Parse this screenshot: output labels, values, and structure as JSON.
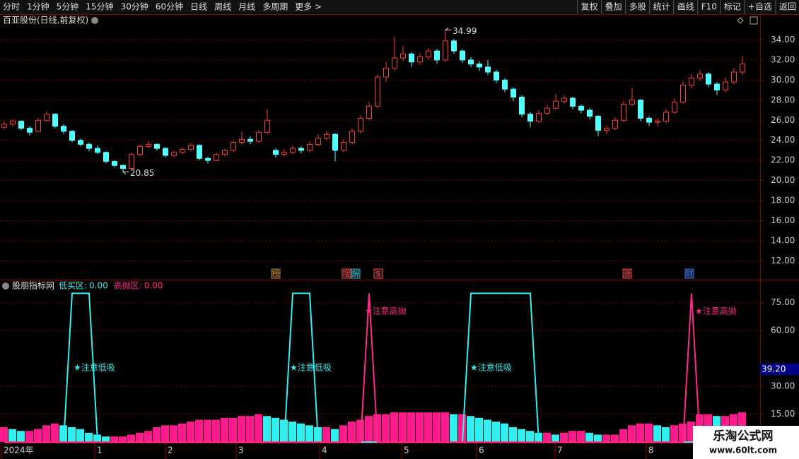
{
  "toolbar": {
    "left": [
      "分时",
      "1分钟",
      "5分钟",
      "15分钟",
      "30分钟",
      "60分钟",
      "日线",
      "周线",
      "月线",
      "多周期",
      "更多 >"
    ],
    "active": 6,
    "right": [
      "复权",
      "叠加",
      "多股",
      "统计",
      "画线",
      "F10",
      "标记",
      "+自选",
      "返回"
    ]
  },
  "watermark": {
    "title": "乐淘公式网",
    "url": "www.60lt.com"
  },
  "x_labels": [
    "2024年",
    "1",
    "2",
    "3",
    "4",
    "5",
    "6",
    "7",
    "8"
  ],
  "chart_data": [
    {
      "type": "candlestick",
      "title": "百亚股份(日线,前复权)",
      "up_color": "#ff3c3c",
      "down_color": "#54ffff",
      "ylim": [
        10.2,
        35.3
      ],
      "yticks": [
        {
          "value": 12,
          "label": "12.00"
        },
        {
          "value": 14,
          "label": "14.00"
        },
        {
          "value": 16,
          "label": "16.00"
        },
        {
          "value": 18,
          "label": "18.00"
        },
        {
          "value": 20,
          "label": "20.00"
        },
        {
          "value": 22,
          "label": "22.00"
        },
        {
          "value": 24,
          "label": "24.00"
        },
        {
          "value": 26,
          "label": "26.00"
        },
        {
          "value": 28,
          "label": "28.00"
        },
        {
          "value": 30,
          "label": "30.00"
        },
        {
          "value": 32,
          "label": "32.00"
        },
        {
          "value": 34,
          "label": "34.00"
        }
      ],
      "grid": true,
      "annotations": [
        {
          "index": 52,
          "value": 34.99,
          "label": "34.99"
        },
        {
          "index": 14,
          "value": 20.85,
          "label": "20.85"
        }
      ],
      "events": [
        "榜",
        "增",
        "解",
        "$",
        "涨",
        "财"
      ],
      "ohlc": [
        [
          25.3,
          25.9,
          25.1,
          25.6
        ],
        [
          25.6,
          26.1,
          25.4,
          25.9
        ],
        [
          25.9,
          26.0,
          25.0,
          25.2
        ],
        [
          25.2,
          25.4,
          24.5,
          24.8
        ],
        [
          24.9,
          26.2,
          24.8,
          26.0
        ],
        [
          26.0,
          26.9,
          25.8,
          26.6
        ],
        [
          26.6,
          26.7,
          25.2,
          25.4
        ],
        [
          25.4,
          25.6,
          24.6,
          24.9
        ],
        [
          24.9,
          25.0,
          23.8,
          24.0
        ],
        [
          24.0,
          24.2,
          23.4,
          23.6
        ],
        [
          23.6,
          23.8,
          22.9,
          23.2
        ],
        [
          23.2,
          23.5,
          22.6,
          22.8
        ],
        [
          22.8,
          22.9,
          21.7,
          21.9
        ],
        [
          21.9,
          22.0,
          21.3,
          21.5
        ],
        [
          21.5,
          21.6,
          20.85,
          21.2
        ],
        [
          21.2,
          22.8,
          21.1,
          22.6
        ],
        [
          22.6,
          23.6,
          22.4,
          23.4
        ],
        [
          23.4,
          23.9,
          23.2,
          23.6
        ],
        [
          23.6,
          23.7,
          23.0,
          23.2
        ],
        [
          23.2,
          23.3,
          22.3,
          22.5
        ],
        [
          22.5,
          23.0,
          22.3,
          22.8
        ],
        [
          22.8,
          23.3,
          22.6,
          23.1
        ],
        [
          23.1,
          23.7,
          22.9,
          23.5
        ],
        [
          23.5,
          23.6,
          22.0,
          22.2
        ],
        [
          22.2,
          22.4,
          21.7,
          22.0
        ],
        [
          22.0,
          22.8,
          21.9,
          22.6
        ],
        [
          22.6,
          23.2,
          22.4,
          23.0
        ],
        [
          23.0,
          24.0,
          22.8,
          23.8
        ],
        [
          23.8,
          24.9,
          23.6,
          24.1
        ],
        [
          24.1,
          24.4,
          23.6,
          23.9
        ],
        [
          23.9,
          25.0,
          23.8,
          24.8
        ],
        [
          24.8,
          27.1,
          24.6,
          26.0
        ],
        [
          23.0,
          23.2,
          22.3,
          22.6
        ],
        [
          22.6,
          23.1,
          22.4,
          22.8
        ],
        [
          22.8,
          23.5,
          22.6,
          23.2
        ],
        [
          23.2,
          23.4,
          22.7,
          23.0
        ],
        [
          23.0,
          23.9,
          22.8,
          23.6
        ],
        [
          23.6,
          24.6,
          23.4,
          24.2
        ],
        [
          24.2,
          24.9,
          24.0,
          24.6
        ],
        [
          24.6,
          24.7,
          21.9,
          23.0
        ],
        [
          23.0,
          24.1,
          22.8,
          23.8
        ],
        [
          23.8,
          25.2,
          23.6,
          24.9
        ],
        [
          24.9,
          26.5,
          24.7,
          26.2
        ],
        [
          26.2,
          27.8,
          26.0,
          27.4
        ],
        [
          27.4,
          30.6,
          27.2,
          30.3
        ],
        [
          30.3,
          31.8,
          29.8,
          31.2
        ],
        [
          31.2,
          34.3,
          30.9,
          32.2
        ],
        [
          32.2,
          33.4,
          31.9,
          32.6
        ],
        [
          32.6,
          32.8,
          31.3,
          31.8
        ],
        [
          31.8,
          32.7,
          31.5,
          32.3
        ],
        [
          32.3,
          33.2,
          32.0,
          32.9
        ],
        [
          32.9,
          33.1,
          31.6,
          32.0
        ],
        [
          32.0,
          34.99,
          31.8,
          33.9
        ],
        [
          33.9,
          34.1,
          32.6,
          32.9
        ],
        [
          32.9,
          33.1,
          31.7,
          32.0
        ],
        [
          32.0,
          32.3,
          31.3,
          31.6
        ],
        [
          31.6,
          31.9,
          30.9,
          31.3
        ],
        [
          31.3,
          32.0,
          30.5,
          30.8
        ],
        [
          30.8,
          31.0,
          29.7,
          30.0
        ],
        [
          30.0,
          30.2,
          28.8,
          29.1
        ],
        [
          29.1,
          29.3,
          27.9,
          28.3
        ],
        [
          28.3,
          28.5,
          26.3,
          26.6
        ],
        [
          26.6,
          26.8,
          25.3,
          25.9
        ],
        [
          25.9,
          27.0,
          25.7,
          26.7
        ],
        [
          26.7,
          27.5,
          26.5,
          27.2
        ],
        [
          27.2,
          28.6,
          27.0,
          27.9
        ],
        [
          27.9,
          28.5,
          27.6,
          28.2
        ],
        [
          28.2,
          28.3,
          27.1,
          27.4
        ],
        [
          27.4,
          27.6,
          26.7,
          27.0
        ],
        [
          27.0,
          27.2,
          26.1,
          26.4
        ],
        [
          26.4,
          26.5,
          24.4,
          25.0
        ],
        [
          25.0,
          25.5,
          24.6,
          25.2
        ],
        [
          25.2,
          26.3,
          25.0,
          26.0
        ],
        [
          26.0,
          27.9,
          25.8,
          27.6
        ],
        [
          27.6,
          29.2,
          27.4,
          28.0
        ],
        [
          28.0,
          28.1,
          25.9,
          26.2
        ],
        [
          26.2,
          26.4,
          25.4,
          25.8
        ],
        [
          25.8,
          26.2,
          25.4,
          25.9
        ],
        [
          25.9,
          27.1,
          25.7,
          26.8
        ],
        [
          26.8,
          28.2,
          26.6,
          27.8
        ],
        [
          27.8,
          29.9,
          27.6,
          29.5
        ],
        [
          29.5,
          30.6,
          29.2,
          30.2
        ],
        [
          30.2,
          31.0,
          29.9,
          30.6
        ],
        [
          30.6,
          30.8,
          29.3,
          29.6
        ],
        [
          29.6,
          29.8,
          28.5,
          29.0
        ],
        [
          29.0,
          30.2,
          28.8,
          29.8
        ],
        [
          29.8,
          31.2,
          29.6,
          30.8
        ],
        [
          30.8,
          32.4,
          30.5,
          31.6
        ]
      ]
    },
    {
      "type": "indicator",
      "title": "股朋指标网",
      "ylim": [
        0,
        87
      ],
      "yticks": [
        {
          "value": 15,
          "label": "15.00"
        },
        {
          "value": 30,
          "label": "30.00"
        },
        {
          "value": 60,
          "label": "60.00"
        },
        {
          "value": 75,
          "label": "75.00"
        }
      ],
      "marker": {
        "value": 39.2,
        "label": "39.20"
      },
      "bars": {
        "up_color": "#ff1a8c",
        "down_color": "#30f0f0",
        "values": [
          8,
          7,
          6,
          6,
          7,
          9,
          10,
          9,
          8,
          7,
          5,
          4,
          3,
          3,
          3,
          4,
          5,
          6,
          8,
          9,
          9,
          10,
          11,
          12,
          12,
          12,
          13,
          13,
          14,
          14,
          15,
          14,
          13,
          12,
          11,
          10,
          9,
          8,
          8,
          7,
          9,
          11,
          12,
          14,
          15,
          15,
          16,
          16,
          16,
          16,
          16,
          16,
          16,
          15,
          15,
          14,
          13,
          12,
          11,
          10,
          8,
          7,
          6,
          5,
          5,
          4,
          5,
          6,
          6,
          5,
          4,
          4,
          4,
          7,
          9,
          10,
          10,
          9,
          8,
          9,
          10,
          11,
          15,
          15,
          14,
          14,
          15,
          16
        ]
      },
      "series": [
        {
          "name": "低买区:",
          "value_label": "0.00",
          "color": "#30f0f0",
          "signal": "★注意低吸",
          "values": [
            0,
            0,
            0,
            0,
            0,
            0,
            0,
            0,
            80,
            80,
            80,
            0,
            0,
            0,
            0,
            0,
            0,
            0,
            0,
            0,
            0,
            0,
            0,
            0,
            0,
            0,
            0,
            0,
            0,
            0,
            0,
            0,
            0,
            0,
            80,
            80,
            80,
            0,
            0,
            0,
            0,
            0,
            0,
            0,
            0,
            0,
            0,
            0,
            0,
            0,
            0,
            0,
            0,
            0,
            0,
            80,
            80,
            80,
            80,
            80,
            80,
            80,
            80,
            0,
            0,
            0,
            0,
            0,
            0,
            0,
            0,
            0,
            0,
            0,
            0,
            0,
            0,
            0,
            0,
            0,
            0,
            0,
            0,
            0,
            0,
            0,
            0,
            0
          ]
        },
        {
          "name": "高抛区:",
          "value_label": "0.00",
          "color": "#ff2a8a",
          "signal": "★注意高抛",
          "values": [
            0,
            0,
            0,
            0,
            0,
            0,
            0,
            0,
            0,
            0,
            0,
            0,
            0,
            0,
            0,
            0,
            0,
            0,
            0,
            0,
            0,
            0,
            0,
            0,
            0,
            0,
            0,
            0,
            0,
            0,
            0,
            0,
            0,
            0,
            0,
            0,
            0,
            0,
            0,
            0,
            0,
            0,
            0,
            80,
            0,
            0,
            0,
            0,
            0,
            0,
            0,
            0,
            0,
            0,
            0,
            0,
            0,
            0,
            0,
            0,
            0,
            0,
            0,
            0,
            0,
            0,
            0,
            0,
            0,
            0,
            0,
            0,
            0,
            0,
            0,
            0,
            0,
            0,
            0,
            0,
            0,
            80,
            0,
            0,
            0,
            0,
            0,
            0
          ]
        }
      ]
    }
  ]
}
